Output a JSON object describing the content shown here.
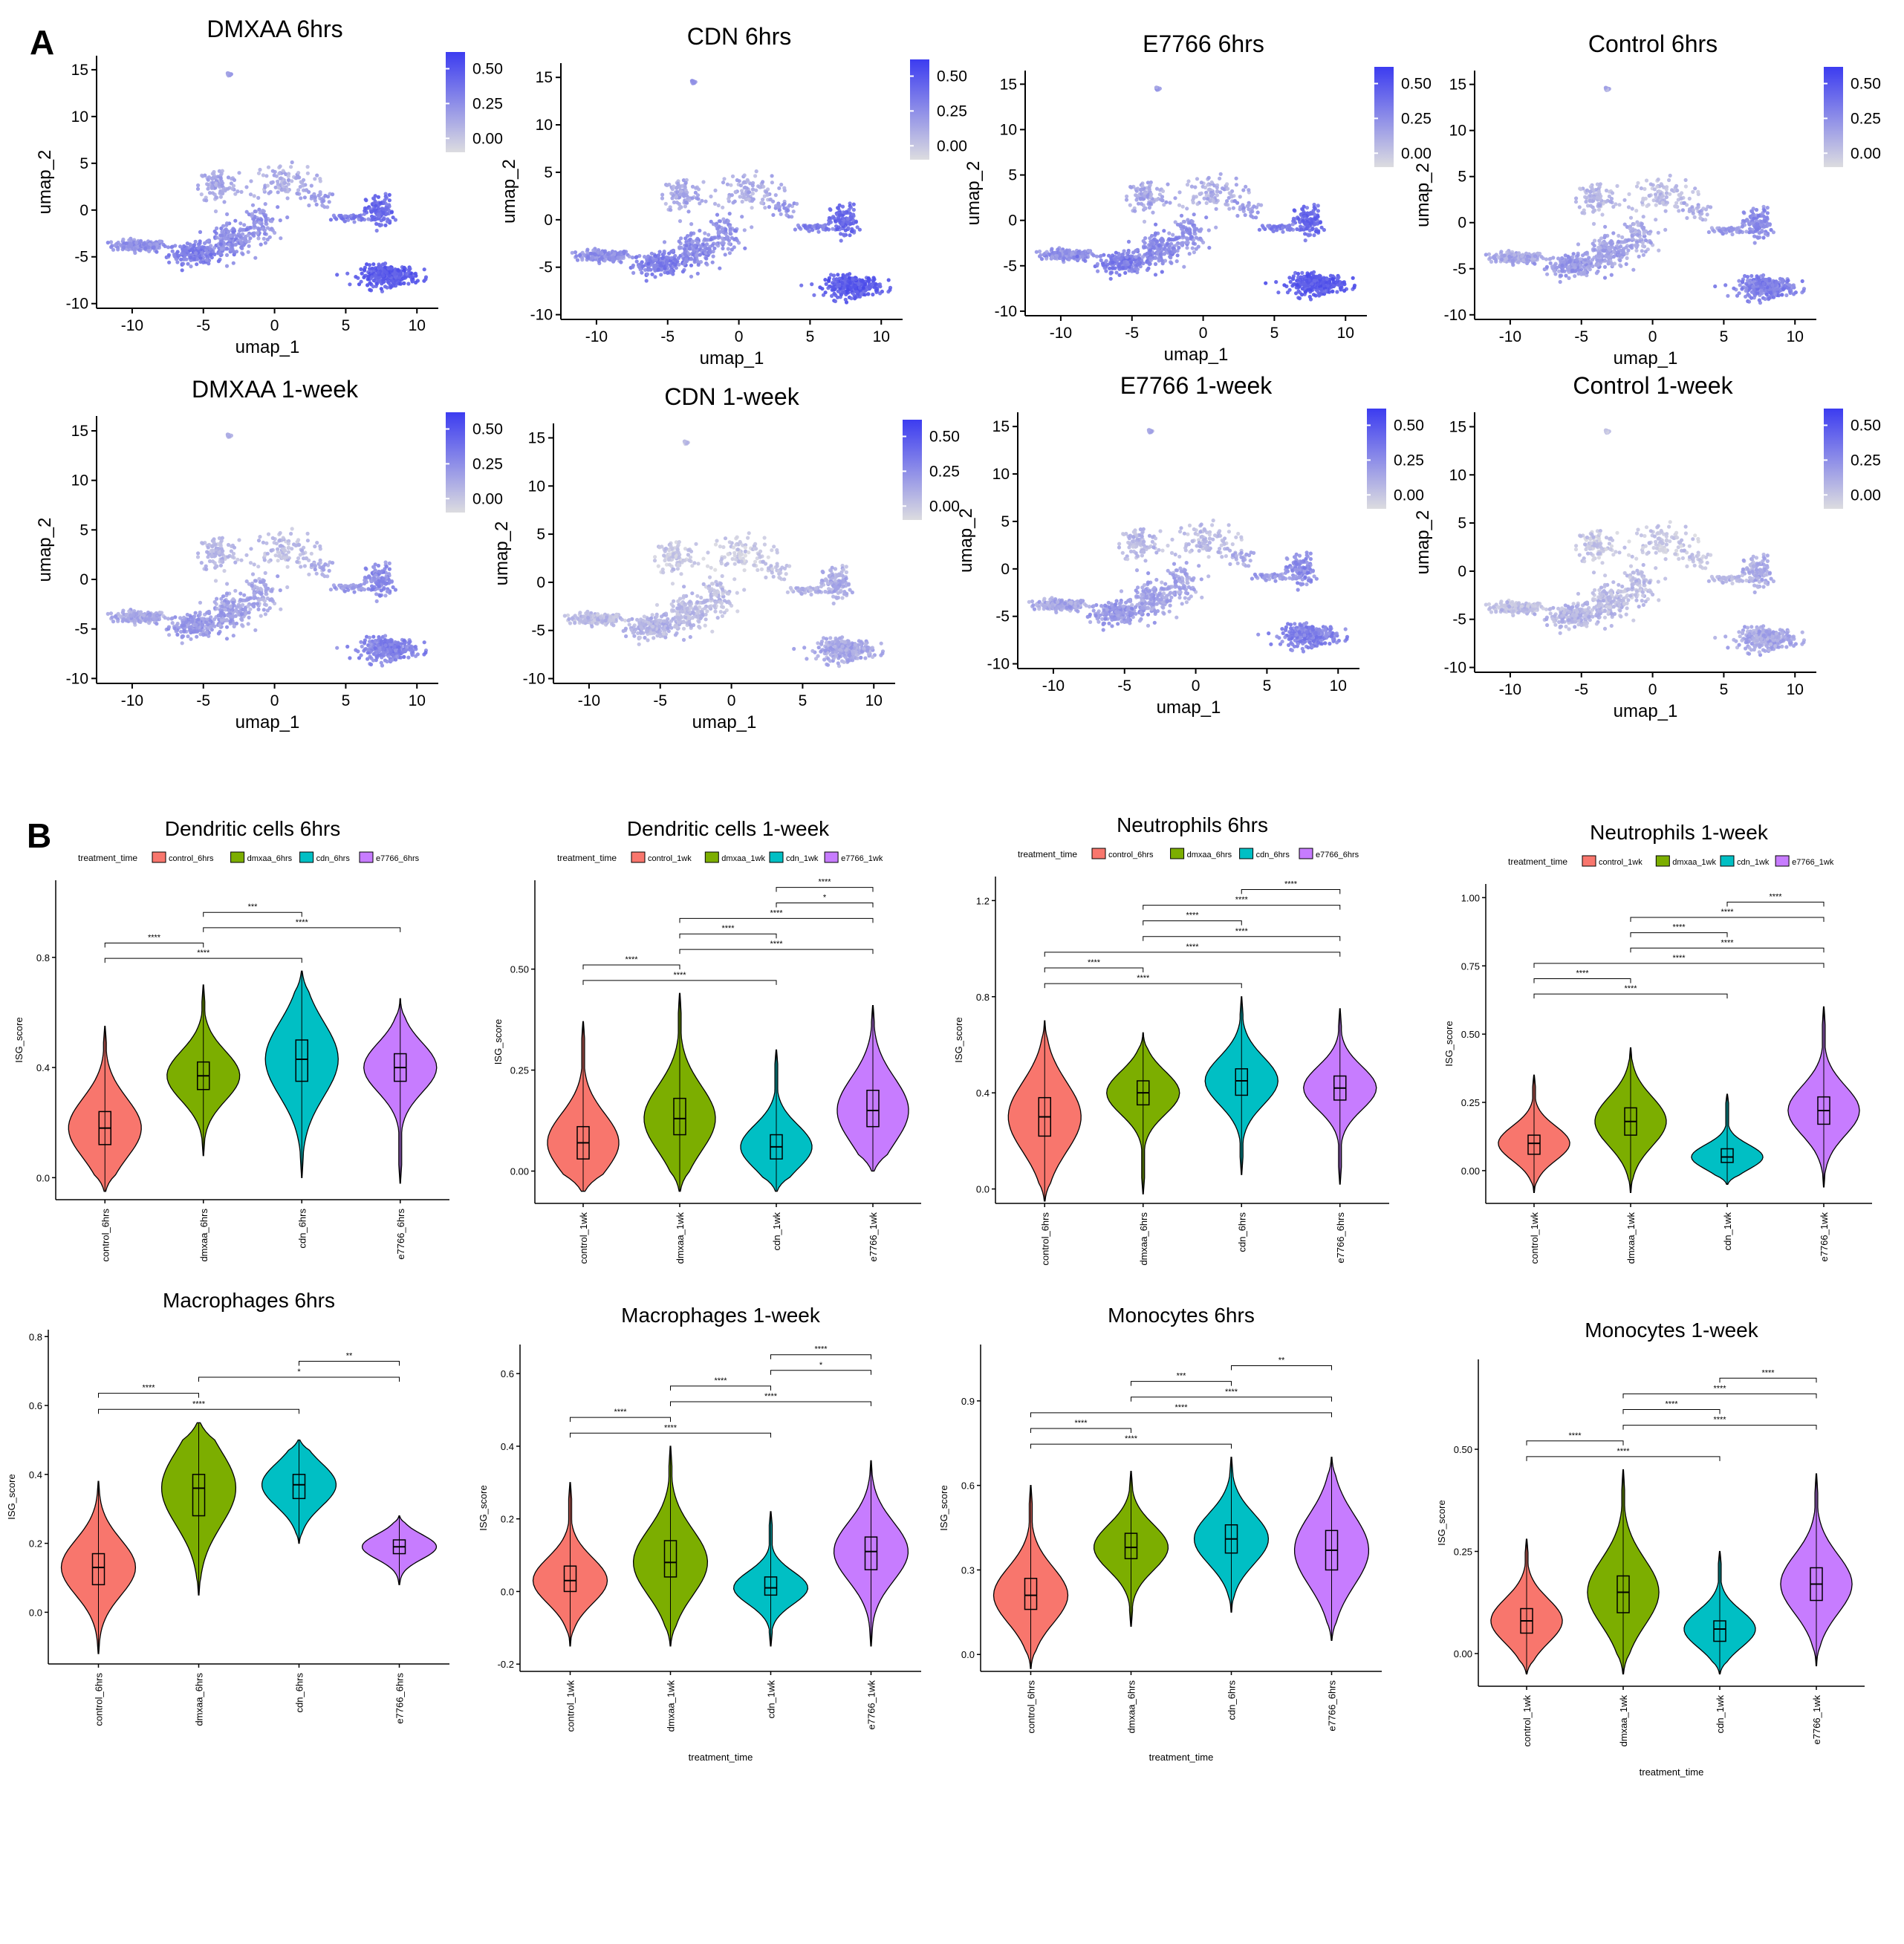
{
  "panel_letters": {
    "a": "A",
    "b": "B"
  },
  "chart_data": [
    {
      "type": "umap-feature-plot",
      "panel": "A",
      "title": "DMXAA  6hrs",
      "xlabel": "umap_1",
      "ylabel": "umap_2",
      "xticks": [
        -10,
        -5,
        0,
        5,
        10
      ],
      "yticks": [
        -10,
        -5,
        0,
        5,
        10,
        15
      ],
      "xlim": [
        -12.5,
        11.5
      ],
      "ylim": [
        -10.5,
        16.5
      ],
      "colorbar": {
        "ticks": [
          "0.00",
          "0.25",
          "0.50"
        ],
        "range": [
          -0.1,
          0.62
        ]
      },
      "feature_intensity": "high"
    },
    {
      "type": "umap-feature-plot",
      "panel": "A",
      "title": "CDN  6hrs",
      "xlabel": "umap_1",
      "ylabel": "umap_2",
      "xticks": [
        -10,
        -5,
        0,
        5,
        10
      ],
      "yticks": [
        -10,
        -5,
        0,
        5,
        10,
        15
      ],
      "xlim": [
        -12.5,
        11.5
      ],
      "ylim": [
        -10.5,
        16.5
      ],
      "colorbar": {
        "ticks": [
          "0.00",
          "0.25",
          "0.50"
        ],
        "range": [
          -0.1,
          0.62
        ]
      },
      "feature_intensity": "high"
    },
    {
      "type": "umap-feature-plot",
      "panel": "A",
      "title": "E7766  6hrs",
      "xlabel": "umap_1",
      "ylabel": "umap_2",
      "xticks": [
        -10,
        -5,
        0,
        5,
        10
      ],
      "yticks": [
        -10,
        -5,
        0,
        5,
        10,
        15
      ],
      "xlim": [
        -12.5,
        11.5
      ],
      "ylim": [
        -10.5,
        16.5
      ],
      "colorbar": {
        "ticks": [
          "0.00",
          "0.25",
          "0.50"
        ],
        "range": [
          -0.1,
          0.62
        ]
      },
      "feature_intensity": "high"
    },
    {
      "type": "umap-feature-plot",
      "panel": "A",
      "title": "Control  6hrs",
      "xlabel": "umap_1",
      "ylabel": "umap_2",
      "xticks": [
        -10,
        -5,
        0,
        5,
        10
      ],
      "yticks": [
        -10,
        -5,
        0,
        5,
        10,
        15
      ],
      "xlim": [
        -12.5,
        11.5
      ],
      "ylim": [
        -10.5,
        16.5
      ],
      "colorbar": {
        "ticks": [
          "0.00",
          "0.25",
          "0.50"
        ],
        "range": [
          -0.1,
          0.62
        ]
      },
      "feature_intensity": "medium"
    },
    {
      "type": "umap-feature-plot",
      "panel": "A",
      "title": "DMXAA  1-week",
      "xlabel": "umap_1",
      "ylabel": "umap_2",
      "xticks": [
        -10,
        -5,
        0,
        5,
        10
      ],
      "yticks": [
        -10,
        -5,
        0,
        5,
        10,
        15
      ],
      "xlim": [
        -12.5,
        11.5
      ],
      "ylim": [
        -10.5,
        16.5
      ],
      "colorbar": {
        "ticks": [
          "0.00",
          "0.25",
          "0.50"
        ],
        "range": [
          -0.1,
          0.62
        ]
      },
      "feature_intensity": "medium"
    },
    {
      "type": "umap-feature-plot",
      "panel": "A",
      "title": "CDN 1-week",
      "xlabel": "umap_1",
      "ylabel": "umap_2",
      "xticks": [
        -10,
        -5,
        0,
        5,
        10
      ],
      "yticks": [
        -10,
        -5,
        0,
        5,
        10,
        15
      ],
      "xlim": [
        -12.5,
        11.5
      ],
      "ylim": [
        -10.5,
        16.5
      ],
      "colorbar": {
        "ticks": [
          "0.00",
          "0.25",
          "0.50"
        ],
        "range": [
          -0.1,
          0.62
        ]
      },
      "feature_intensity": "low"
    },
    {
      "type": "umap-feature-plot",
      "panel": "A",
      "title": "E7766 1-week",
      "xlabel": "umap_1",
      "ylabel": "umap_2",
      "xticks": [
        -10,
        -5,
        0,
        5,
        10
      ],
      "yticks": [
        -10,
        -5,
        0,
        5,
        10,
        15
      ],
      "xlim": [
        -12.5,
        11.5
      ],
      "ylim": [
        -10.5,
        16.5
      ],
      "colorbar": {
        "ticks": [
          "0.00",
          "0.25",
          "0.50"
        ],
        "range": [
          -0.1,
          0.62
        ]
      },
      "feature_intensity": "medium"
    },
    {
      "type": "umap-feature-plot",
      "panel": "A",
      "title": "Control 1-week",
      "xlabel": "umap_1",
      "ylabel": "umap_2",
      "xticks": [
        -10,
        -5,
        0,
        5,
        10
      ],
      "yticks": [
        -10,
        -5,
        0,
        5,
        10,
        15
      ],
      "xlim": [
        -12.5,
        11.5
      ],
      "ylim": [
        -10.5,
        16.5
      ],
      "colorbar": {
        "ticks": [
          "0.00",
          "0.25",
          "0.50"
        ],
        "range": [
          -0.1,
          0.62
        ]
      },
      "feature_intensity": "low"
    },
    {
      "type": "violin",
      "panel": "B",
      "title": "Dendritic cells 6hrs",
      "ylabel": "ISG_score",
      "xlabel": "",
      "legend_title": "treatment_time",
      "legend_position": "top",
      "categories": [
        "control_6hrs",
        "dmxaa_6hrs",
        "cdn_6hrs",
        "e7766_6hrs"
      ],
      "colors": [
        "#F8766D",
        "#7CAE00",
        "#00BFC4",
        "#C77CFF"
      ],
      "ylim": [
        -0.08,
        1.08
      ],
      "yticks": [
        "0.0",
        "0.4",
        "0.8"
      ],
      "stats": [
        {
          "median": 0.18,
          "q1": 0.12,
          "q3": 0.24,
          "min": -0.05,
          "max": 0.55
        },
        {
          "median": 0.37,
          "q1": 0.32,
          "q3": 0.42,
          "min": 0.08,
          "max": 0.7
        },
        {
          "median": 0.43,
          "q1": 0.35,
          "q3": 0.5,
          "min": 0.0,
          "max": 0.75
        },
        {
          "median": 0.4,
          "q1": 0.35,
          "q3": 0.45,
          "min": -0.02,
          "max": 0.65
        }
      ],
      "comparisons": [
        {
          "from": 1,
          "to": 2,
          "label": "***"
        },
        {
          "from": 1,
          "to": 3,
          "label": "****"
        },
        {
          "from": 0,
          "to": 1,
          "label": "****"
        },
        {
          "from": 0,
          "to": 2,
          "label": "****"
        }
      ]
    },
    {
      "type": "violin",
      "panel": "B",
      "title": "Dendritic cells 1-week",
      "ylabel": "ISG_score",
      "xlabel": "",
      "legend_title": "treatment_time",
      "legend_position": "top",
      "categories": [
        "control_1wk",
        "dmxaa_1wk",
        "cdn_1wk",
        "e7766_1wk"
      ],
      "colors": [
        "#F8766D",
        "#7CAE00",
        "#00BFC4",
        "#C77CFF"
      ],
      "ylim": [
        -0.08,
        0.72
      ],
      "yticks": [
        "0.00",
        "0.25",
        "0.50"
      ],
      "stats": [
        {
          "median": 0.07,
          "q1": 0.03,
          "q3": 0.11,
          "min": -0.05,
          "max": 0.37
        },
        {
          "median": 0.13,
          "q1": 0.09,
          "q3": 0.18,
          "min": -0.05,
          "max": 0.44
        },
        {
          "median": 0.06,
          "q1": 0.03,
          "q3": 0.09,
          "min": -0.05,
          "max": 0.3
        },
        {
          "median": 0.15,
          "q1": 0.11,
          "q3": 0.2,
          "min": 0.0,
          "max": 0.41
        }
      ],
      "comparisons": [
        {
          "from": 2,
          "to": 3,
          "label": "****"
        },
        {
          "from": 2,
          "to": 3,
          "label": "*"
        },
        {
          "from": 1,
          "to": 3,
          "label": "****"
        },
        {
          "from": 1,
          "to": 2,
          "label": "****"
        },
        {
          "from": 1,
          "to": 3,
          "label": "****"
        },
        {
          "from": 0,
          "to": 1,
          "label": "****"
        },
        {
          "from": 0,
          "to": 2,
          "label": "****"
        }
      ]
    },
    {
      "type": "violin",
      "panel": "B",
      "title": "Neutrophils 6hrs",
      "ylabel": "ISG_score",
      "xlabel": "",
      "legend_title": "treatment_time",
      "legend_position": "top",
      "categories": [
        "control_6hrs",
        "dmxaa_6hrs",
        "cdn_6hrs",
        "e7766_6hrs"
      ],
      "colors": [
        "#F8766D",
        "#7CAE00",
        "#00BFC4",
        "#C77CFF"
      ],
      "ylim": [
        -0.06,
        1.3
      ],
      "yticks": [
        "0.0",
        "0.4",
        "0.8",
        "1.2"
      ],
      "stats": [
        {
          "median": 0.3,
          "q1": 0.22,
          "q3": 0.38,
          "min": -0.05,
          "max": 0.7
        },
        {
          "median": 0.4,
          "q1": 0.35,
          "q3": 0.45,
          "min": -0.02,
          "max": 0.65
        },
        {
          "median": 0.45,
          "q1": 0.39,
          "q3": 0.5,
          "min": 0.06,
          "max": 0.8
        },
        {
          "median": 0.42,
          "q1": 0.37,
          "q3": 0.47,
          "min": 0.02,
          "max": 0.75
        }
      ],
      "comparisons": [
        {
          "from": 2,
          "to": 3,
          "label": "****"
        },
        {
          "from": 1,
          "to": 3,
          "label": "****"
        },
        {
          "from": 1,
          "to": 2,
          "label": "****"
        },
        {
          "from": 1,
          "to": 3,
          "label": "****"
        },
        {
          "from": 0,
          "to": 3,
          "label": "****"
        },
        {
          "from": 0,
          "to": 1,
          "label": "****"
        },
        {
          "from": 0,
          "to": 2,
          "label": "****"
        }
      ]
    },
    {
      "type": "violin",
      "panel": "B",
      "title": "Neutrophils 1-week",
      "ylabel": "ISG_score",
      "xlabel": "",
      "legend_title": "treatment_time",
      "legend_position": "top",
      "categories": [
        "control_1wk",
        "dmxaa_1wk",
        "cdn_1wk",
        "e7766_1wk"
      ],
      "colors": [
        "#F8766D",
        "#7CAE00",
        "#00BFC4",
        "#C77CFF"
      ],
      "ylim": [
        -0.12,
        1.05
      ],
      "yticks": [
        "0.00",
        "0.25",
        "0.50",
        "0.75",
        "1.00"
      ],
      "stats": [
        {
          "median": 0.1,
          "q1": 0.06,
          "q3": 0.13,
          "min": -0.08,
          "max": 0.35
        },
        {
          "median": 0.18,
          "q1": 0.13,
          "q3": 0.23,
          "min": -0.08,
          "max": 0.45
        },
        {
          "median": 0.05,
          "q1": 0.03,
          "q3": 0.08,
          "min": -0.05,
          "max": 0.28
        },
        {
          "median": 0.22,
          "q1": 0.17,
          "q3": 0.27,
          "min": -0.06,
          "max": 0.6
        }
      ],
      "comparisons": [
        {
          "from": 2,
          "to": 3,
          "label": "****"
        },
        {
          "from": 1,
          "to": 3,
          "label": "****"
        },
        {
          "from": 1,
          "to": 2,
          "label": "****"
        },
        {
          "from": 1,
          "to": 3,
          "label": "****"
        },
        {
          "from": 0,
          "to": 3,
          "label": "****"
        },
        {
          "from": 0,
          "to": 1,
          "label": "****"
        },
        {
          "from": 0,
          "to": 2,
          "label": "****"
        }
      ]
    },
    {
      "type": "violin",
      "panel": "B",
      "title": "Macrophages 6hrs",
      "ylabel": "ISG_score",
      "xlabel": "",
      "legend_title": "",
      "legend_position": "none",
      "categories": [
        "control_6hrs",
        "dmxaa_6hrs",
        "cdn_6hrs",
        "e7766_6hrs"
      ],
      "colors": [
        "#F8766D",
        "#7CAE00",
        "#00BFC4",
        "#C77CFF"
      ],
      "ylim": [
        -0.15,
        0.82
      ],
      "yticks": [
        "0.0",
        "0.2",
        "0.4",
        "0.6",
        "0.8"
      ],
      "stats": [
        {
          "median": 0.13,
          "q1": 0.08,
          "q3": 0.17,
          "min": -0.12,
          "max": 0.38
        },
        {
          "median": 0.36,
          "q1": 0.28,
          "q3": 0.4,
          "min": 0.05,
          "max": 0.55
        },
        {
          "median": 0.37,
          "q1": 0.33,
          "q3": 0.4,
          "min": 0.2,
          "max": 0.5
        },
        {
          "median": 0.19,
          "q1": 0.17,
          "q3": 0.21,
          "min": 0.08,
          "max": 0.28
        }
      ],
      "comparisons": [
        {
          "from": 2,
          "to": 3,
          "label": "**"
        },
        {
          "from": 1,
          "to": 3,
          "label": "*"
        },
        {
          "from": 0,
          "to": 1,
          "label": "****"
        },
        {
          "from": 0,
          "to": 2,
          "label": "****"
        }
      ]
    },
    {
      "type": "violin",
      "panel": "B",
      "title": "Macrophages 1-week",
      "ylabel": "ISG_score",
      "xlabel": "treatment_time",
      "legend_title": "",
      "legend_position": "none",
      "categories": [
        "control_1wk",
        "dmxaa_1wk",
        "cdn_1wk",
        "e7766_1wk"
      ],
      "colors": [
        "#F8766D",
        "#7CAE00",
        "#00BFC4",
        "#C77CFF"
      ],
      "ylim": [
        -0.22,
        0.68
      ],
      "yticks": [
        "-0.2",
        "0.0",
        "0.2",
        "0.4",
        "0.6"
      ],
      "stats": [
        {
          "median": 0.03,
          "q1": 0.0,
          "q3": 0.07,
          "min": -0.15,
          "max": 0.3
        },
        {
          "median": 0.08,
          "q1": 0.04,
          "q3": 0.14,
          "min": -0.15,
          "max": 0.4
        },
        {
          "median": 0.01,
          "q1": -0.01,
          "q3": 0.04,
          "min": -0.15,
          "max": 0.22
        },
        {
          "median": 0.11,
          "q1": 0.06,
          "q3": 0.15,
          "min": -0.15,
          "max": 0.36
        }
      ],
      "comparisons": [
        {
          "from": 2,
          "to": 3,
          "label": "****"
        },
        {
          "from": 2,
          "to": 3,
          "label": "*"
        },
        {
          "from": 1,
          "to": 2,
          "label": "****"
        },
        {
          "from": 1,
          "to": 3,
          "label": "****"
        },
        {
          "from": 0,
          "to": 1,
          "label": "****"
        },
        {
          "from": 0,
          "to": 2,
          "label": "****"
        }
      ]
    },
    {
      "type": "violin",
      "panel": "B",
      "title": "Monocytes 6hrs",
      "ylabel": "ISG_score",
      "xlabel": "treatment_time",
      "legend_title": "",
      "legend_position": "none",
      "categories": [
        "control_6hrs",
        "dmxaa_6hrs",
        "cdn_6hrs",
        "e7766_6hrs"
      ],
      "colors": [
        "#F8766D",
        "#7CAE00",
        "#00BFC4",
        "#C77CFF"
      ],
      "ylim": [
        -0.06,
        1.1
      ],
      "yticks": [
        "0.0",
        "0.3",
        "0.6",
        "0.9"
      ],
      "stats": [
        {
          "median": 0.21,
          "q1": 0.16,
          "q3": 0.27,
          "min": -0.05,
          "max": 0.6
        },
        {
          "median": 0.38,
          "q1": 0.34,
          "q3": 0.43,
          "min": 0.1,
          "max": 0.65
        },
        {
          "median": 0.41,
          "q1": 0.36,
          "q3": 0.46,
          "min": 0.15,
          "max": 0.7
        },
        {
          "median": 0.37,
          "q1": 0.3,
          "q3": 0.44,
          "min": 0.05,
          "max": 0.7
        }
      ],
      "comparisons": [
        {
          "from": 2,
          "to": 3,
          "label": "**"
        },
        {
          "from": 1,
          "to": 2,
          "label": "***"
        },
        {
          "from": 1,
          "to": 3,
          "label": "****"
        },
        {
          "from": 0,
          "to": 3,
          "label": "****"
        },
        {
          "from": 0,
          "to": 1,
          "label": "****"
        },
        {
          "from": 0,
          "to": 2,
          "label": "****"
        }
      ]
    },
    {
      "type": "violin",
      "panel": "B",
      "title": "Monocytes 1-week",
      "ylabel": "ISG_score",
      "xlabel": "treatment_time",
      "legend_title": "",
      "legend_position": "none",
      "categories": [
        "control_1wk",
        "dmxaa_1wk",
        "cdn_1wk",
        "e7766_1wk"
      ],
      "colors": [
        "#F8766D",
        "#7CAE00",
        "#00BFC4",
        "#C77CFF"
      ],
      "ylim": [
        -0.08,
        0.72
      ],
      "yticks": [
        "0.00",
        "0.25",
        "0.50"
      ],
      "stats": [
        {
          "median": 0.08,
          "q1": 0.05,
          "q3": 0.11,
          "min": -0.05,
          "max": 0.28
        },
        {
          "median": 0.15,
          "q1": 0.1,
          "q3": 0.19,
          "min": -0.05,
          "max": 0.45
        },
        {
          "median": 0.06,
          "q1": 0.03,
          "q3": 0.08,
          "min": -0.05,
          "max": 0.25
        },
        {
          "median": 0.17,
          "q1": 0.13,
          "q3": 0.21,
          "min": -0.03,
          "max": 0.44
        }
      ],
      "comparisons": [
        {
          "from": 2,
          "to": 3,
          "label": "****"
        },
        {
          "from": 1,
          "to": 3,
          "label": "****"
        },
        {
          "from": 1,
          "to": 2,
          "label": "****"
        },
        {
          "from": 1,
          "to": 3,
          "label": "****"
        },
        {
          "from": 0,
          "to": 1,
          "label": "****"
        },
        {
          "from": 0,
          "to": 2,
          "label": "****"
        }
      ]
    }
  ]
}
